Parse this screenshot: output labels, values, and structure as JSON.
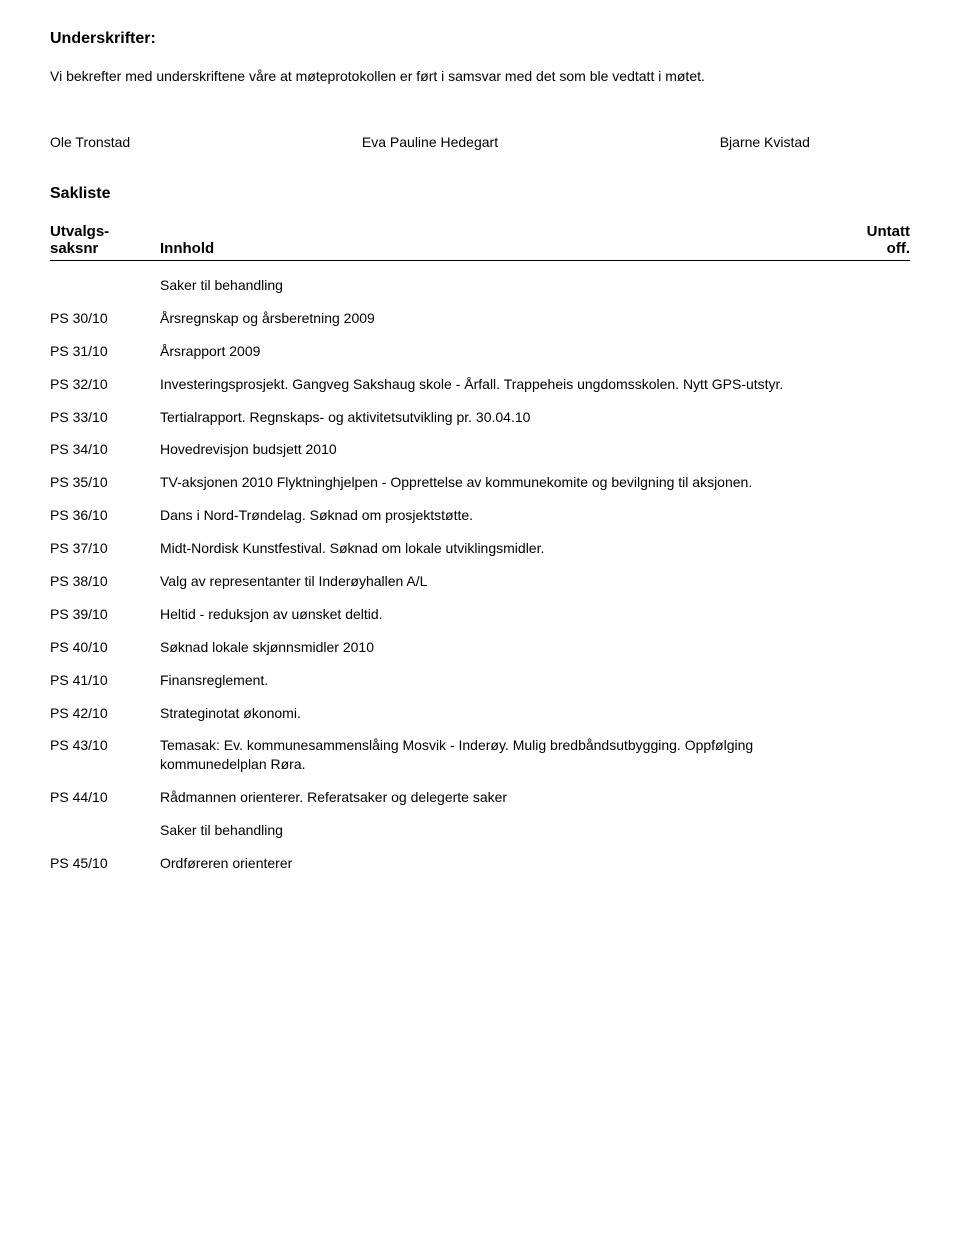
{
  "heading1": "Underskrifter:",
  "intro": "Vi bekrefter med underskriftene våre at møteprotokollen er ført i samsvar med det som ble vedtatt i møtet.",
  "signatures": {
    "s1": "Ole Tronstad",
    "s2": "Eva Pauline Hedegart",
    "s3": "Bjarne Kvistad"
  },
  "heading2": "Sakliste",
  "tableHeader": {
    "leftTop": "Utvalgs-",
    "leftBottom": "saksnr",
    "mid": "Innhold",
    "rightTop": "Untatt",
    "rightBottom": "off."
  },
  "rows": [
    {
      "id": "",
      "text": "Saker til behandling"
    },
    {
      "id": "PS 30/10",
      "text": "Årsregnskap og årsberetning 2009"
    },
    {
      "id": "PS 31/10",
      "text": "Årsrapport 2009"
    },
    {
      "id": "PS 32/10",
      "text": "Investeringsprosjekt. Gangveg Sakshaug skole - Årfall. Trappeheis ungdomsskolen. Nytt GPS-utstyr."
    },
    {
      "id": "PS 33/10",
      "text": "Tertialrapport. Regnskaps- og aktivitetsutvikling pr. 30.04.10"
    },
    {
      "id": "PS 34/10",
      "text": "Hovedrevisjon budsjett 2010"
    },
    {
      "id": "PS 35/10",
      "text": "TV-aksjonen 2010 Flyktninghjelpen - Opprettelse av kommunekomite og bevilgning til aksjonen."
    },
    {
      "id": "PS 36/10",
      "text": "Dans i Nord-Trøndelag. Søknad om prosjektstøtte."
    },
    {
      "id": "PS 37/10",
      "text": "Midt-Nordisk Kunstfestival. Søknad om lokale utviklingsmidler."
    },
    {
      "id": "PS 38/10",
      "text": "Valg av representanter til Inderøyhallen A/L"
    },
    {
      "id": "PS 39/10",
      "text": "Heltid - reduksjon av uønsket deltid."
    },
    {
      "id": "PS 40/10",
      "text": "Søknad lokale skjønnsmidler 2010"
    },
    {
      "id": "PS 41/10",
      "text": "Finansreglement."
    },
    {
      "id": "PS 42/10",
      "text": "Strateginotat økonomi."
    },
    {
      "id": "PS 43/10",
      "text": "Temasak: Ev. kommunesammenslåing Mosvik - Inderøy. Mulig bredbåndsutbygging. Oppfølging kommunedelplan Røra."
    },
    {
      "id": "PS 44/10",
      "text": "Rådmannen orienterer. Referatsaker og delegerte saker"
    },
    {
      "id": "",
      "text": "Saker til behandling"
    },
    {
      "id": "PS 45/10",
      "text": "Ordføreren orienterer"
    }
  ]
}
